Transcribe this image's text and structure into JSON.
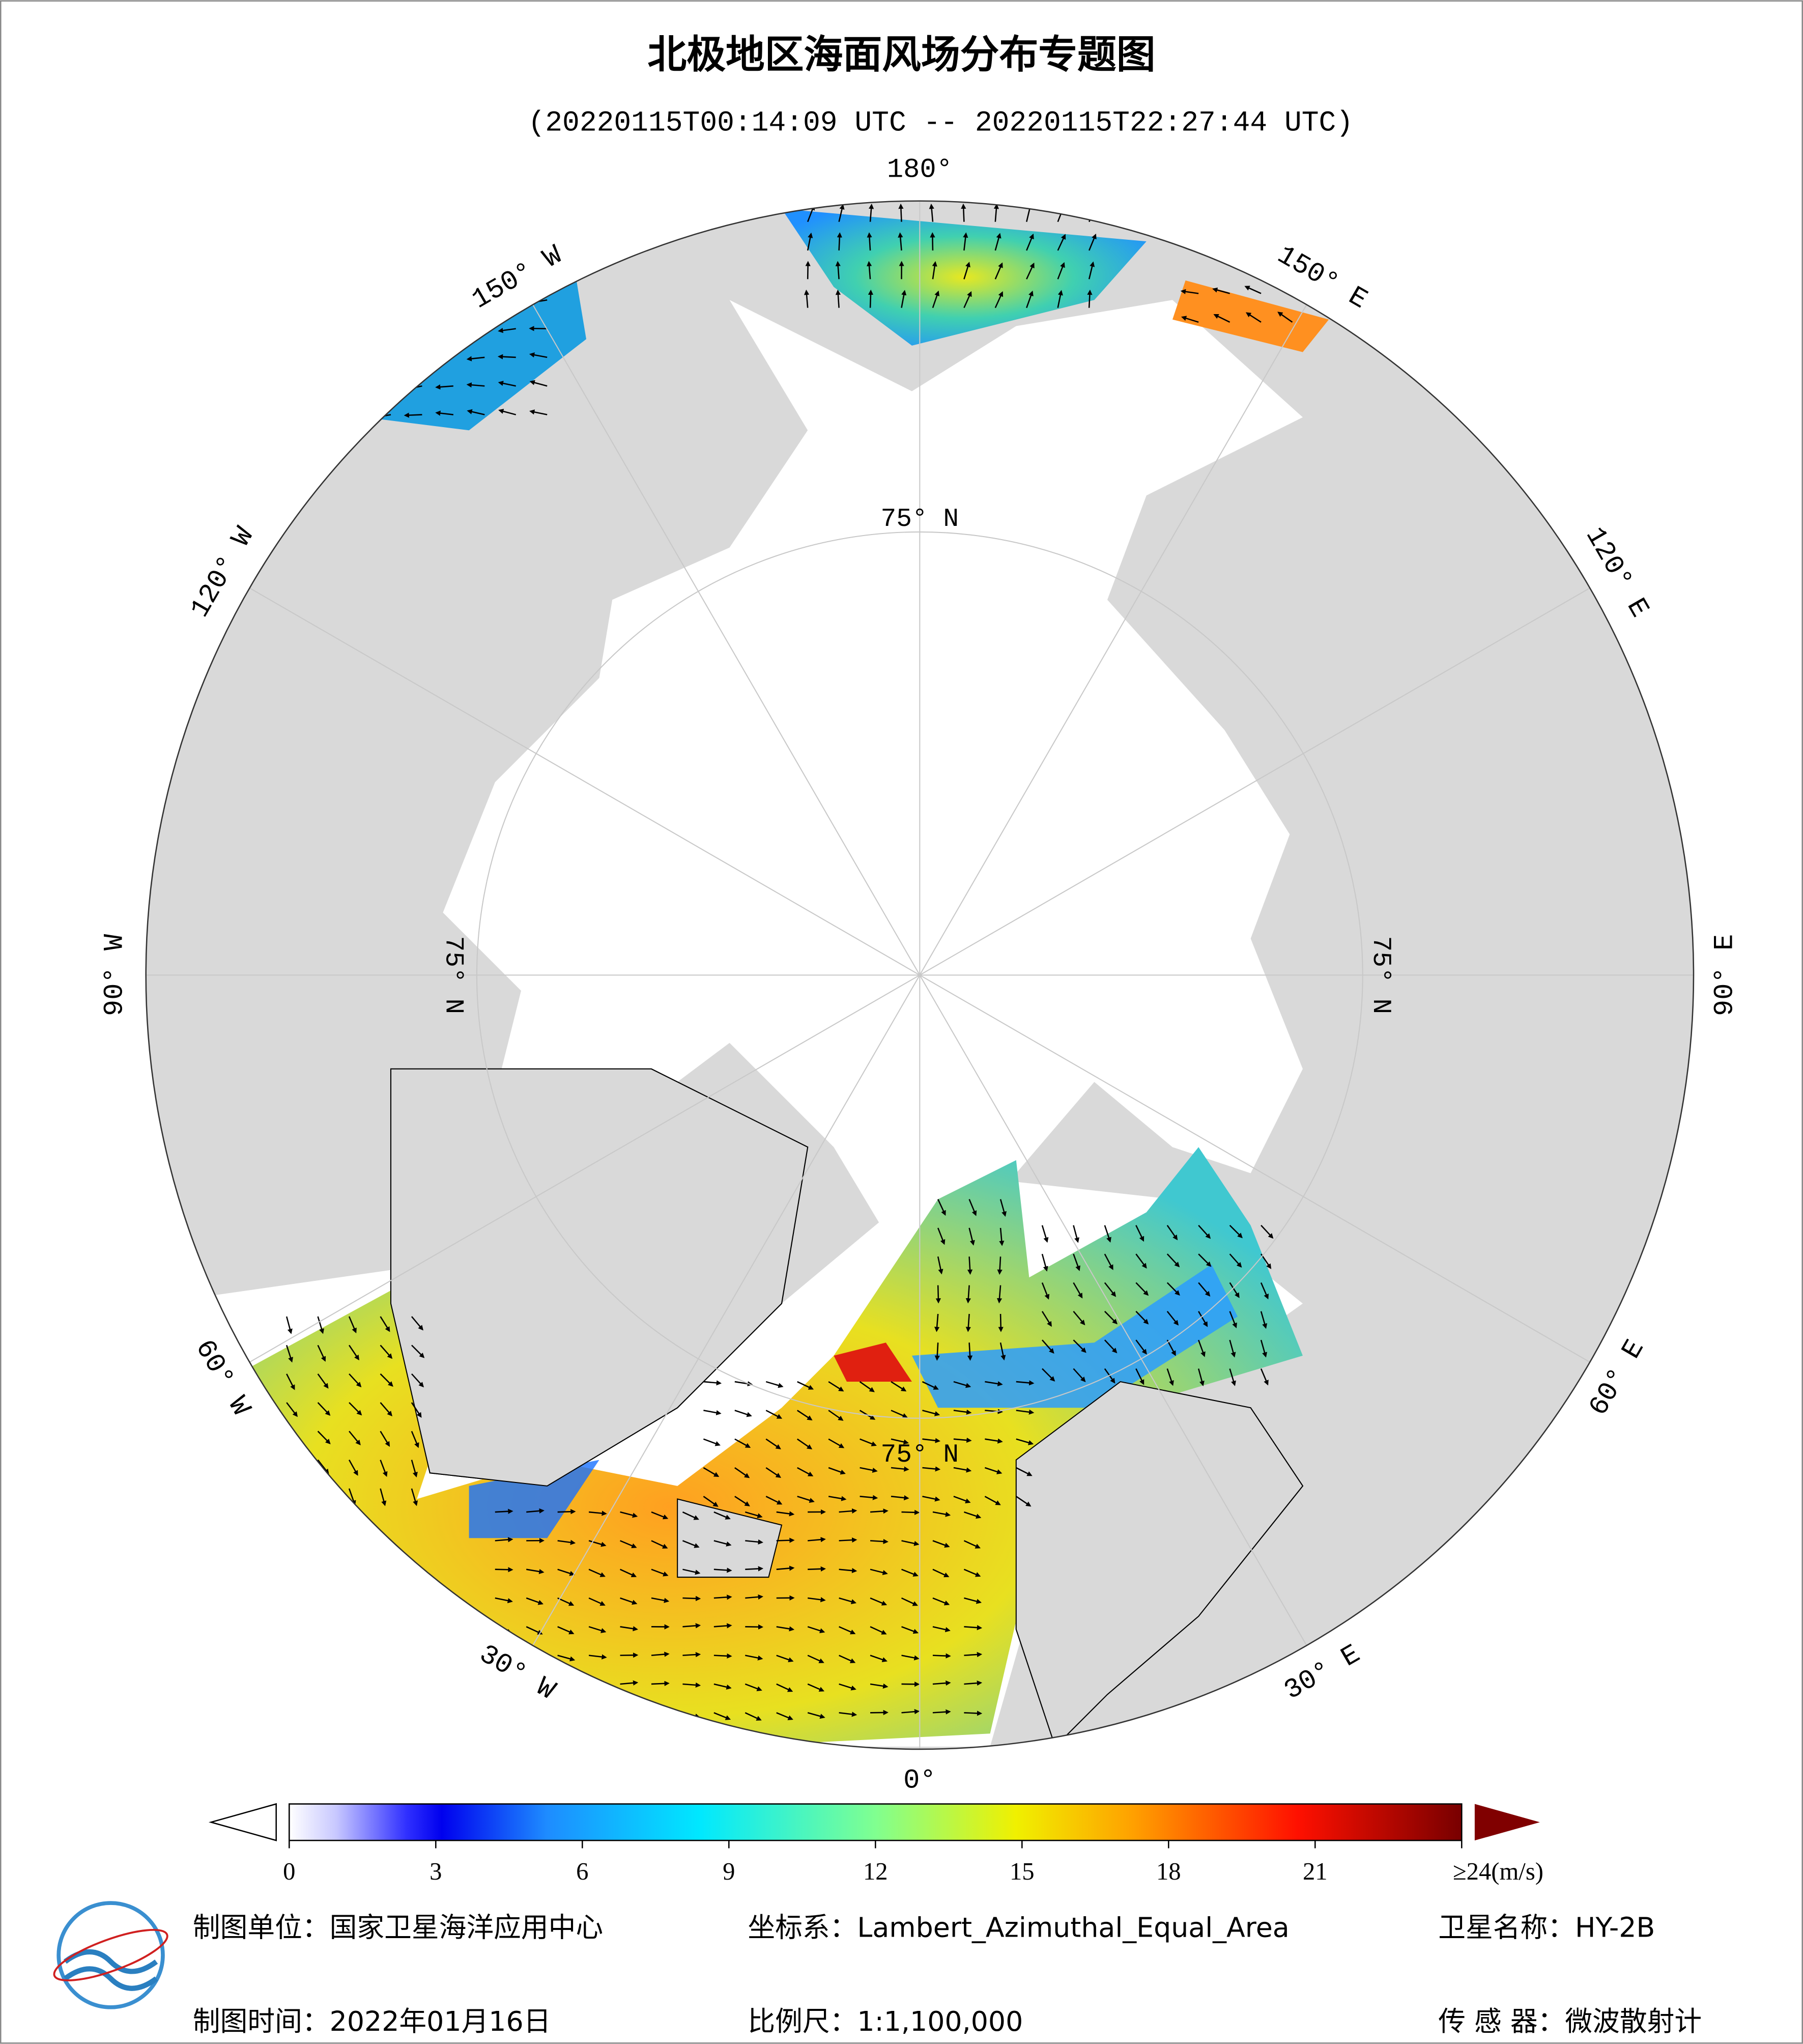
{
  "header": {
    "title": "北极地区海面风场分布专题图",
    "subtitle": "(20220115T00:14:09 UTC -- 20220115T22:27:44 UTC)"
  },
  "map": {
    "lon_labels": [
      "0°",
      "30° E",
      "60° E",
      "90° E",
      "120° E",
      "150° E",
      "180°",
      "150° W",
      "120° W",
      "90° W",
      "60° W",
      "30° W"
    ],
    "lat_labels": [
      "75° N",
      "75° N",
      "75° N",
      "75° N"
    ]
  },
  "colorbar": {
    "range": [
      0,
      24
    ],
    "ticks": [
      0,
      3,
      6,
      9,
      12,
      15,
      18,
      21,
      {
        "value": 24,
        "label": "≥24(m/s)"
      }
    ]
  },
  "footer": {
    "unit": "制图单位：国家卫星海洋应用中心",
    "crs": "坐标系：Lambert_Azimuthal_Equal_Area",
    "satellite": "卫星名称：HY-2B",
    "date": "制图时间：2022年01月16日",
    "scale": "比例尺：1:1,100,000",
    "sensor": "传 感 器：微波散射计"
  }
}
